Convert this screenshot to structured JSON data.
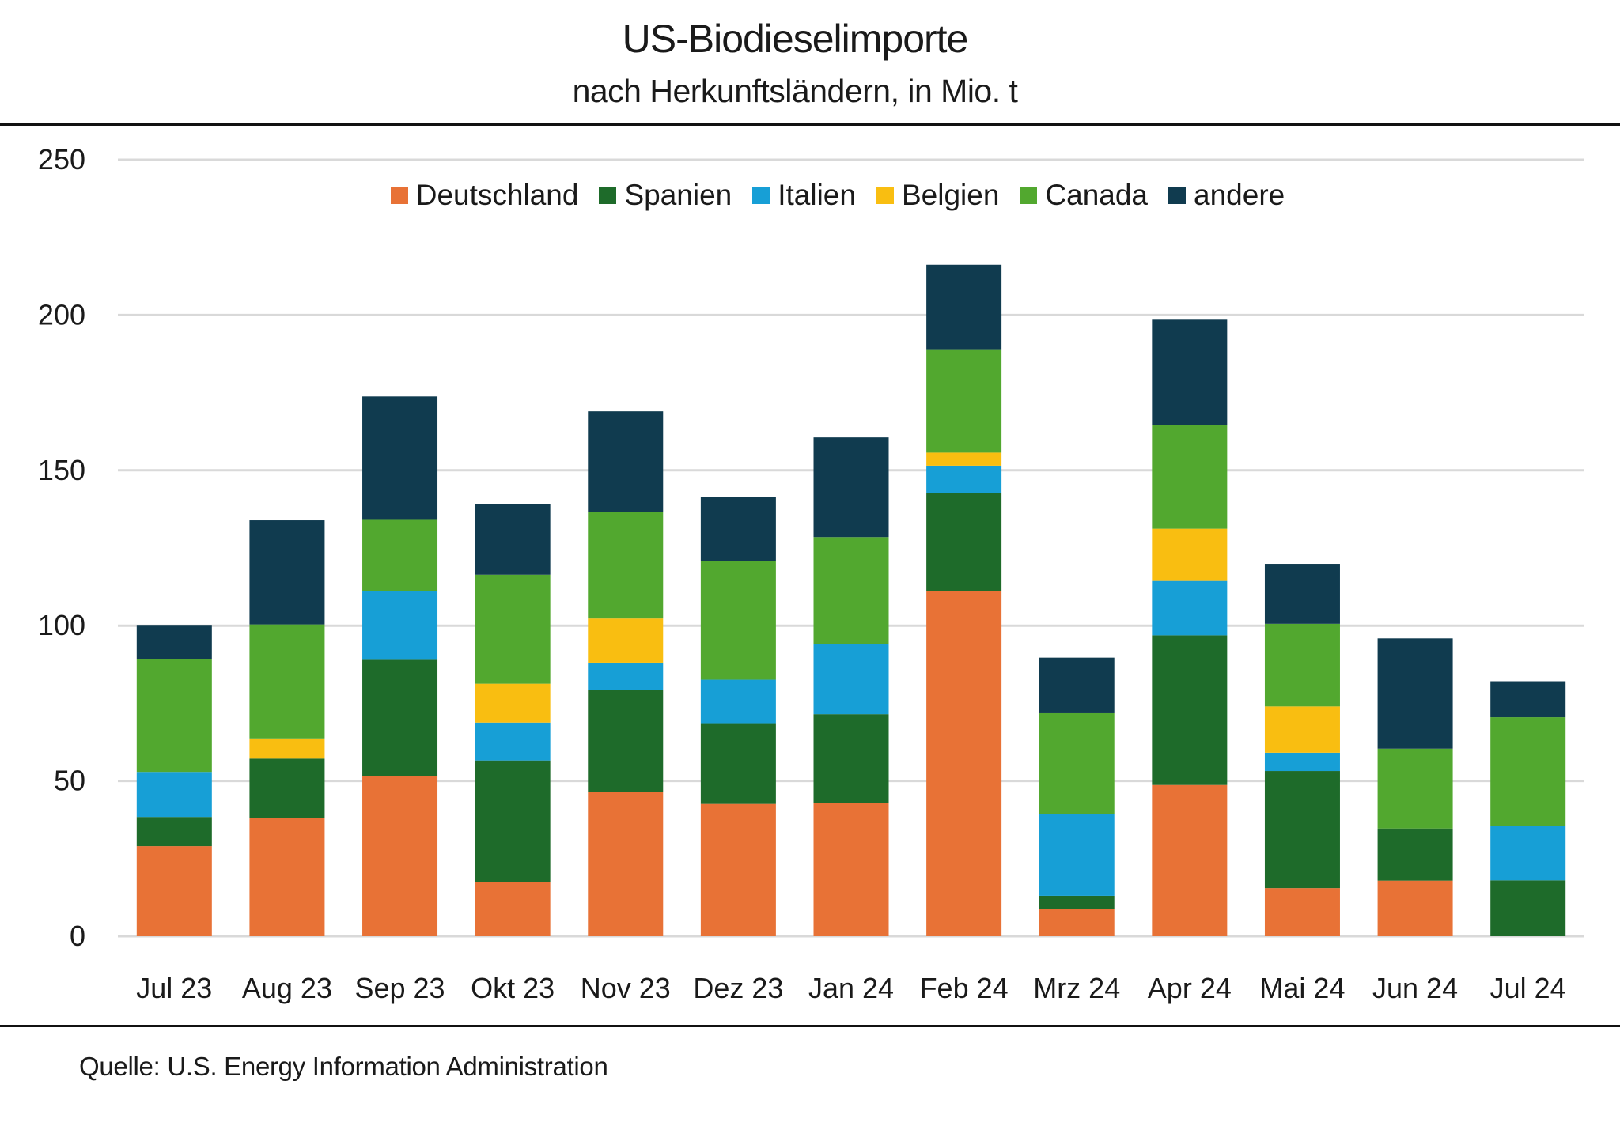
{
  "header": {
    "title": "US-Biodieselimporte",
    "subtitle": "nach Herkunftsländern, in Mio. t"
  },
  "footer": {
    "source": "Quelle: U.S. Energy Information Administration"
  },
  "chart_data": {
    "type": "bar",
    "stacked": true,
    "title": "US-Biodieselimporte",
    "subtitle": "nach Herkunftsländern, in Mio. t",
    "xlabel": "",
    "ylabel": "",
    "ylim": [
      0,
      250
    ],
    "yticks": [
      0,
      50,
      100,
      150,
      200,
      250
    ],
    "grid": true,
    "legend_position": "top-center",
    "categories": [
      "Jul 23",
      "Aug 23",
      "Sep 23",
      "Okt 23",
      "Nov 23",
      "Dez 23",
      "Jan 24",
      "Feb 24",
      "Mrz 24",
      "Apr 24",
      "Mai 24",
      "Jun 24",
      "Jul 24"
    ],
    "series": [
      {
        "name": "Deutschland",
        "color": "#E87236",
        "values": [
          29.0,
          38.0,
          51.6,
          17.5,
          46.4,
          42.6,
          42.9,
          111.1,
          8.7,
          48.7,
          15.5,
          17.9,
          0.0
        ]
      },
      {
        "name": "Spanien",
        "color": "#1E6B2A",
        "values": [
          9.4,
          19.2,
          37.4,
          39.1,
          32.8,
          26.0,
          28.6,
          31.6,
          4.3,
          48.2,
          37.7,
          16.8,
          18.0
        ]
      },
      {
        "name": "Italien",
        "color": "#179FD6",
        "values": [
          14.5,
          0.0,
          22.0,
          12.2,
          8.9,
          14.0,
          22.6,
          8.8,
          26.4,
          17.5,
          5.9,
          0.0,
          17.6
        ]
      },
      {
        "name": "Belgien",
        "color": "#F9BE11",
        "values": [
          0.0,
          6.5,
          0.0,
          12.5,
          14.2,
          0.0,
          0.0,
          4.2,
          0.0,
          16.8,
          14.9,
          0.0,
          0.0
        ]
      },
      {
        "name": "Canada",
        "color": "#52A82F",
        "values": [
          36.2,
          36.7,
          23.3,
          35.1,
          34.4,
          38.1,
          34.4,
          33.3,
          32.4,
          33.3,
          26.6,
          25.7,
          34.9
        ]
      },
      {
        "name": "andere",
        "color": "#103B4F",
        "values": [
          10.9,
          33.5,
          39.5,
          22.8,
          32.3,
          20.7,
          32.1,
          27.2,
          17.9,
          34.0,
          19.3,
          35.5,
          11.6
        ]
      }
    ]
  }
}
